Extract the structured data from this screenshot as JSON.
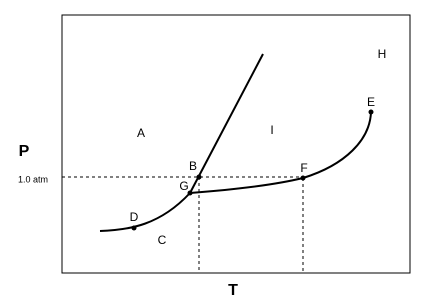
{
  "axes": {
    "y_label": "P",
    "x_label": "T",
    "pressure_label": "1.0 atm"
  },
  "labels": [
    "A",
    "B",
    "C",
    "D",
    "E",
    "F",
    "G",
    "H",
    "I"
  ]
}
